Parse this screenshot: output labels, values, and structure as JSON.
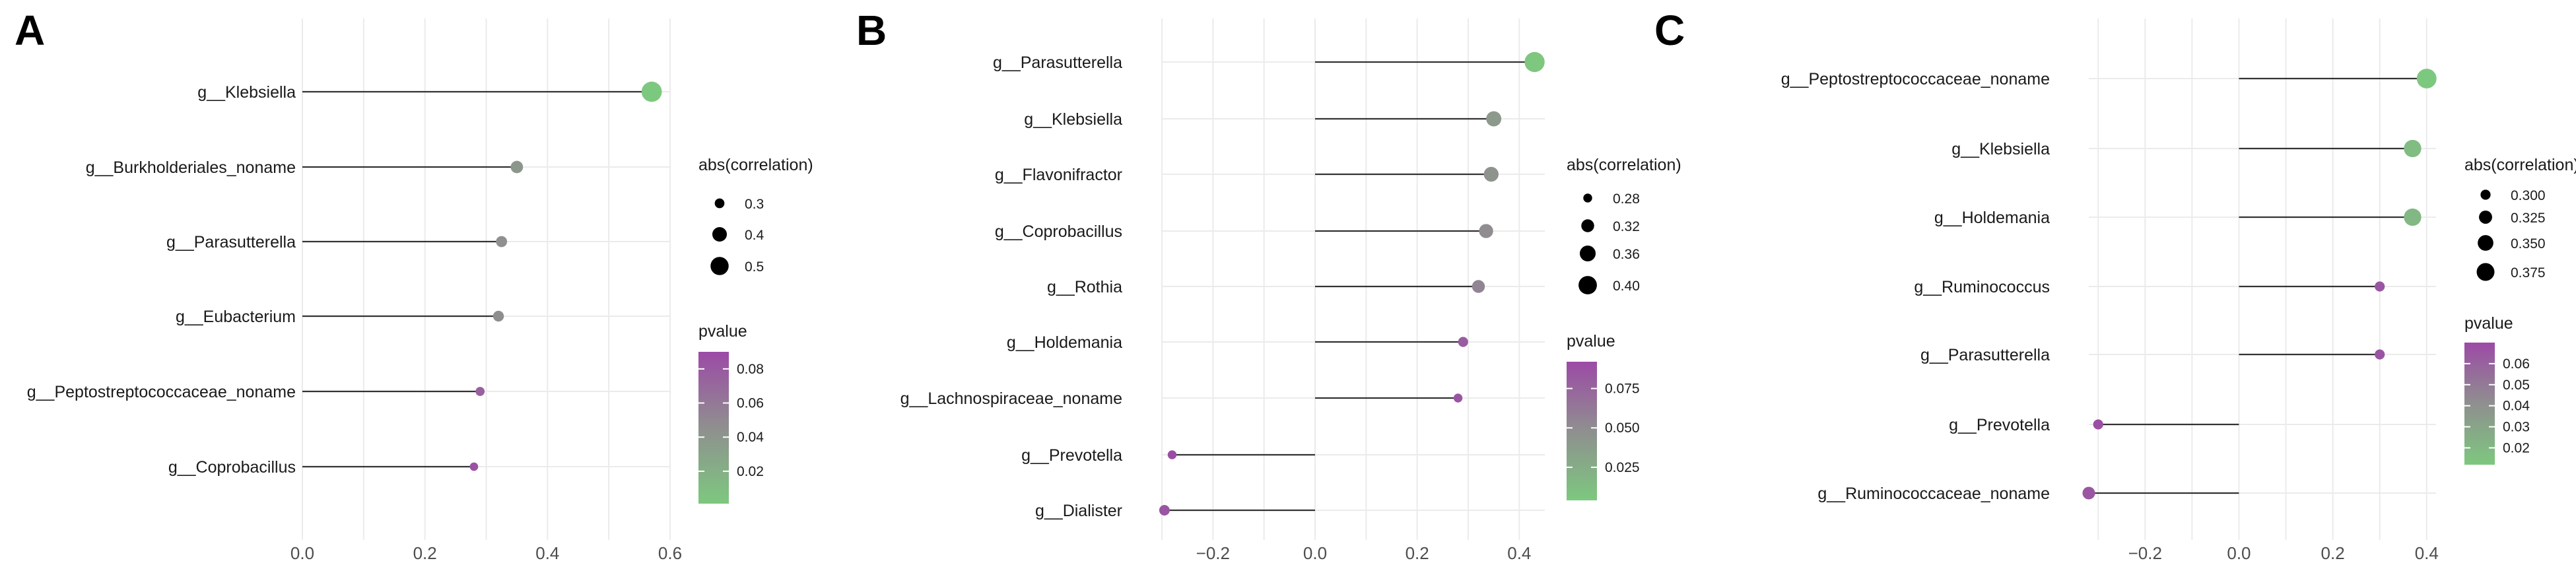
{
  "colors": {
    "low_p": "#7dc87f",
    "mid_p": "#8f8f8f",
    "high_p": "#9c4aa6",
    "stem": "#333333",
    "grid": "#ebebeb"
  },
  "chart_data": [
    {
      "panel": "A",
      "type": "lollipop",
      "xlabel": "",
      "ylabel": "",
      "xlim": [
        0,
        0.6
      ],
      "xticks": [
        0.0,
        0.2,
        0.4,
        0.6
      ],
      "xtick_labels": [
        "0.0",
        "0.2",
        "0.4",
        "0.6"
      ],
      "categories": [
        "g__Klebsiella",
        "g__Burkholderiales_noname",
        "g__Parasutterella",
        "g__Eubacterium",
        "g__Peptostreptococcaceae_noname",
        "g__Coprobacillus"
      ],
      "correlation": [
        0.57,
        0.35,
        0.325,
        0.32,
        0.29,
        0.28
      ],
      "abs_correlation": [
        0.57,
        0.35,
        0.325,
        0.32,
        0.29,
        0.28
      ],
      "pvalue": [
        0.001,
        0.04,
        0.045,
        0.047,
        0.075,
        0.085
      ],
      "legend_size": {
        "title": "abs(correlation)",
        "labels": [
          "0.3",
          "0.4",
          "0.5"
        ],
        "values": [
          0.3,
          0.4,
          0.5
        ]
      },
      "legend_color": {
        "title": "pvalue",
        "labels": [
          "0.08",
          "0.06",
          "0.04",
          "0.02"
        ],
        "values": [
          0.08,
          0.06,
          0.04,
          0.02
        ],
        "range": [
          0.001,
          0.09
        ]
      }
    },
    {
      "panel": "B",
      "type": "lollipop",
      "xlabel": "",
      "ylabel": "",
      "xlim": [
        -0.3,
        0.45
      ],
      "xticks": [
        -0.2,
        0.0,
        0.2,
        0.4
      ],
      "xtick_labels": [
        "−0.2",
        "0.0",
        "0.2",
        "0.4"
      ],
      "categories": [
        "g__Parasutterella",
        "g__Klebsiella",
        "g__Flavonifractor",
        "g__Coprobacillus",
        "g__Rothia",
        "g__Holdemania",
        "g__Lachnospiraceae_noname",
        "g__Prevotella",
        "g__Dialister"
      ],
      "correlation": [
        0.43,
        0.35,
        0.345,
        0.335,
        0.32,
        0.29,
        0.28,
        -0.28,
        -0.295
      ],
      "abs_correlation": [
        0.43,
        0.35,
        0.345,
        0.335,
        0.32,
        0.29,
        0.28,
        0.28,
        0.295
      ],
      "pvalue": [
        0.005,
        0.04,
        0.045,
        0.05,
        0.055,
        0.08,
        0.085,
        0.09,
        0.085
      ],
      "legend_size": {
        "title": "abs(correlation)",
        "labels": [
          "0.28",
          "0.32",
          "0.36",
          "0.40"
        ],
        "values": [
          0.28,
          0.32,
          0.36,
          0.4
        ]
      },
      "legend_color": {
        "title": "pvalue",
        "labels": [
          "0.075",
          "0.050",
          "0.025"
        ],
        "values": [
          0.075,
          0.05,
          0.025
        ],
        "range": [
          0.004,
          0.092
        ]
      }
    },
    {
      "panel": "C",
      "type": "lollipop",
      "xlabel": "",
      "ylabel": "",
      "xlim": [
        -0.32,
        0.42
      ],
      "xticks": [
        -0.2,
        0.0,
        0.2,
        0.4
      ],
      "xtick_labels": [
        "−0.2",
        "0.0",
        "0.2",
        "0.4"
      ],
      "categories": [
        "g__Peptostreptococcaceae_noname",
        "g__Klebsiella",
        "g__Holdemania",
        "g__Ruminococcus",
        "g__Parasutterella",
        "g__Prevotella",
        "g__Ruminococcaceae_noname"
      ],
      "correlation": [
        0.4,
        0.37,
        0.37,
        0.3,
        0.3,
        -0.3,
        -0.32
      ],
      "abs_correlation": [
        0.4,
        0.37,
        0.37,
        0.3,
        0.3,
        0.3,
        0.32
      ],
      "pvalue": [
        0.012,
        0.018,
        0.02,
        0.065,
        0.066,
        0.068,
        0.065
      ],
      "legend_size": {
        "title": "abs(correlation)",
        "labels": [
          "0.300",
          "0.325",
          "0.350",
          "0.375"
        ],
        "values": [
          0.3,
          0.325,
          0.35,
          0.375
        ]
      },
      "legend_color": {
        "title": "pvalue",
        "labels": [
          "0.06",
          "0.05",
          "0.04",
          "0.03",
          "0.02"
        ],
        "values": [
          0.06,
          0.05,
          0.04,
          0.03,
          0.02
        ],
        "range": [
          0.012,
          0.07
        ]
      }
    }
  ]
}
